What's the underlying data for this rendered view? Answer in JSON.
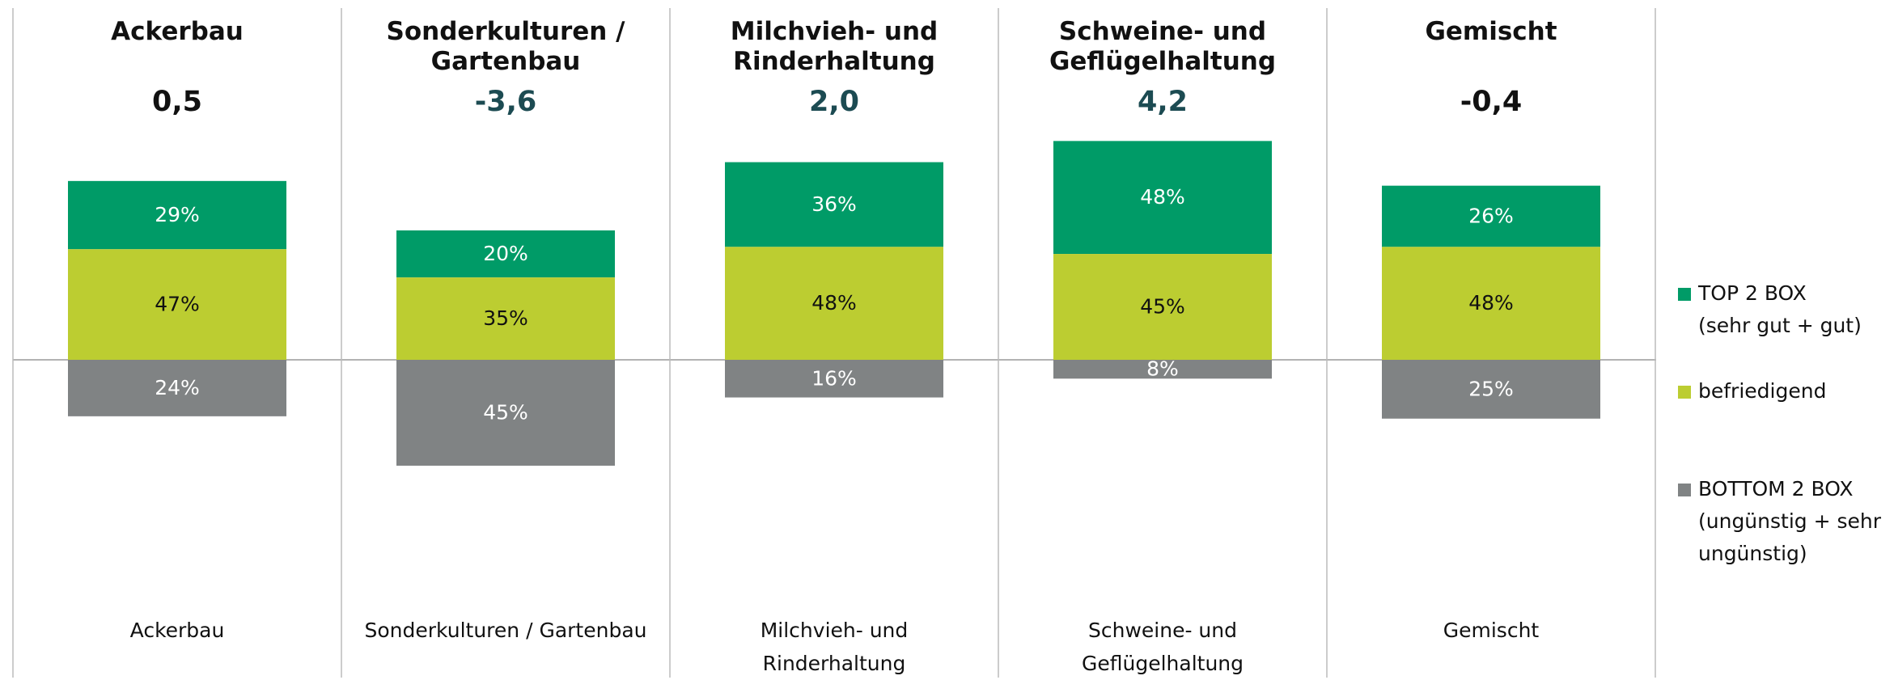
{
  "chart_data": {
    "type": "bar",
    "titles": [
      "Ackerbau",
      "Sonderkulturen /\nGartenbau",
      "Milchvieh- und\nRinderhaltung",
      "Schweine- und\nGeflügelhaltung",
      "Gemischt"
    ],
    "scores": [
      {
        "value": 0.5,
        "label": "0,5"
      },
      {
        "value": -3.6,
        "label": "-3,6"
      },
      {
        "value": 2.0,
        "label": "2,0"
      },
      {
        "value": 4.2,
        "label": "4,2"
      },
      {
        "value": -0.4,
        "label": "-0,4"
      }
    ],
    "score_colors": [
      "#111111",
      "#1c4b52",
      "#1c4b52",
      "#1c4b52",
      "#111111"
    ],
    "categories": [
      "Ackerbau",
      "Sonderkulturen / Gartenbau",
      "Milchvieh- und\nRinderhaltung",
      "Schweine- und\nGeflügelhaltung",
      "Gemischt"
    ],
    "series": [
      {
        "name": "TOP 2 BOX\n(sehr gut + gut)",
        "color": "#009b67",
        "values": [
          29,
          20,
          36,
          48,
          26
        ],
        "value_labels": [
          "29%",
          "20%",
          "36%",
          "48%",
          "26%"
        ]
      },
      {
        "name": "befriedigend",
        "color": "#bccd31",
        "values": [
          47,
          35,
          48,
          45,
          48
        ],
        "value_labels": [
          "47%",
          "35%",
          "48%",
          "45%",
          "48%"
        ]
      },
      {
        "name": "BOTTOM 2 BOX\n(ungünstig + sehr\nungünstig)",
        "color": "#808384",
        "values": [
          24,
          45,
          16,
          8,
          25
        ],
        "value_labels": [
          "24%",
          "45%",
          "16%",
          "8%",
          "25%"
        ]
      }
    ]
  }
}
